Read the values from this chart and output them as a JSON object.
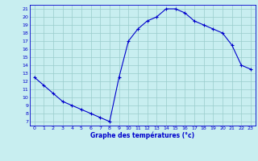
{
  "x": [
    0,
    1,
    2,
    3,
    4,
    5,
    6,
    7,
    8,
    9,
    10,
    11,
    12,
    13,
    14,
    15,
    16,
    17,
    18,
    19,
    20,
    21,
    22,
    23
  ],
  "y": [
    12.5,
    11.5,
    10.5,
    9.5,
    9.0,
    8.5,
    8.0,
    7.5,
    7.0,
    12.5,
    17.0,
    18.5,
    19.5,
    20.0,
    21.0,
    21.0,
    20.5,
    19.5,
    19.0,
    18.5,
    18.0,
    16.5,
    14.0,
    13.5
  ],
  "line_color": "#0000cc",
  "marker": "+",
  "bg_color": "#c8eef0",
  "grid_color": "#99cccc",
  "xlabel": "Graphe des températures (°c)",
  "xlabel_color": "#0000cc",
  "tick_color": "#0000cc",
  "xlim": [
    -0.5,
    23.5
  ],
  "ylim": [
    6.5,
    21.5
  ],
  "yticks": [
    7,
    8,
    9,
    10,
    11,
    12,
    13,
    14,
    15,
    16,
    17,
    18,
    19,
    20,
    21
  ],
  "xticks": [
    0,
    1,
    2,
    3,
    4,
    5,
    6,
    7,
    8,
    9,
    10,
    11,
    12,
    13,
    14,
    15,
    16,
    17,
    18,
    19,
    20,
    21,
    22,
    23
  ]
}
